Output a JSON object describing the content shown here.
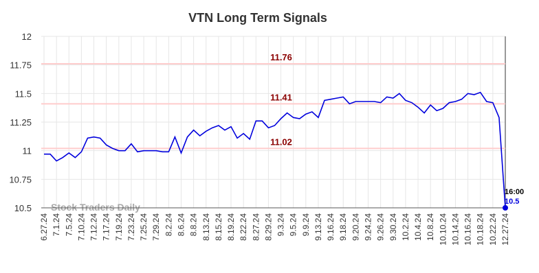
{
  "chart_data": {
    "type": "line",
    "title": "VTN Long Term Signals",
    "categories": [
      "6.27.24",
      null,
      "7.1.24",
      null,
      "7.5.24",
      null,
      "7.10.24",
      null,
      "7.12.24",
      null,
      "7.17.24",
      null,
      "7.19.24",
      null,
      "7.23.24",
      null,
      "7.25.24",
      null,
      "7.29.24",
      null,
      "8.2.24",
      null,
      "8.6.24",
      null,
      "8.8.24",
      null,
      "8.13.24",
      null,
      "8.15.24",
      null,
      "8.19.24",
      null,
      "8.22.24",
      null,
      "8.27.24",
      null,
      "8.29.24",
      null,
      "9.3.24",
      null,
      "9.5.24",
      null,
      "9.9.24",
      null,
      "9.13.24",
      null,
      "9.16.24",
      null,
      "9.18.24",
      null,
      "9.20.24",
      null,
      "9.24.24",
      null,
      "9.26.24",
      null,
      "9.30.24",
      null,
      "10.2.24",
      null,
      "10.4.24",
      null,
      "10.8.24",
      null,
      "10.10.24",
      null,
      "10.14.24",
      null,
      "10.16.24",
      null,
      "10.18.24",
      null,
      "10.22.24",
      null,
      "12.27.24"
    ],
    "series": [
      {
        "name": "VTN",
        "color": "#0000dd",
        "values": [
          10.97,
          10.97,
          10.91,
          10.94,
          10.98,
          10.94,
          10.99,
          11.11,
          11.12,
          11.11,
          11.05,
          11.02,
          11.0,
          11.0,
          11.06,
          10.99,
          11.0,
          11.0,
          11.0,
          10.99,
          10.99,
          11.12,
          10.98,
          11.12,
          11.18,
          11.13,
          11.17,
          11.2,
          11.22,
          11.18,
          11.21,
          11.11,
          11.15,
          11.1,
          11.26,
          11.26,
          11.2,
          11.22,
          11.28,
          11.33,
          11.29,
          11.28,
          11.32,
          11.34,
          11.29,
          11.44,
          11.45,
          11.46,
          11.47,
          11.41,
          11.43,
          11.43,
          11.43,
          11.43,
          11.42,
          11.47,
          11.46,
          11.5,
          11.44,
          11.42,
          11.38,
          11.33,
          11.4,
          11.35,
          11.37,
          11.42,
          11.43,
          11.45,
          11.5,
          11.49,
          11.51,
          11.43,
          11.42,
          11.29,
          10.5
        ]
      }
    ],
    "ylim": [
      10.5,
      12
    ],
    "yticks": [
      10.5,
      10.75,
      11,
      11.25,
      11.5,
      11.75,
      12
    ],
    "grid": true,
    "reference_lines": [
      11.76,
      11.41,
      11.02
    ],
    "last_time_label": "16:00",
    "watermark": "Stock Traders Daily"
  }
}
